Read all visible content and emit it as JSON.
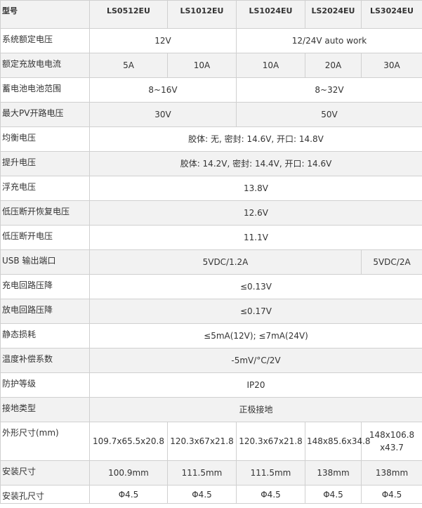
{
  "table": {
    "header": [
      "型号",
      "LS0512EU",
      "LS1012EU",
      "LS1024EU",
      "LS2024EU",
      "LS3024EU"
    ],
    "rows": [
      [
        "系统额定电压",
        "12V",
        "12/24V auto work"
      ],
      [
        "额定充放电电流",
        "5A",
        "10A",
        "10A",
        "20A",
        "30A"
      ],
      [
        "蓄电池电池范围",
        "8~16V",
        "8~32V"
      ],
      [
        "最大PV开路电压",
        "30V",
        "50V"
      ],
      [
        "均衡电压",
        "胶体: 无, 密封: 14.6V, 开口: 14.8V"
      ],
      [
        "提升电压",
        "胶体: 14.2V, 密封: 14.4V, 开口: 14.6V"
      ],
      [
        "浮充电压",
        "13.8V"
      ],
      [
        "低压断开恢复电压",
        "12.6V"
      ],
      [
        "低压断开电压",
        "11.1V"
      ],
      [
        "USB 输出端口",
        "5VDC/1.2A",
        "5VDC/2A"
      ],
      [
        "充电回路压降",
        "≤0.13V"
      ],
      [
        "放电回路压降",
        "≤0.17V"
      ],
      [
        "静态损耗",
        "≤5mA(12V); ≤7mA(24V)"
      ],
      [
        "温度补偿系数",
        "-5mV/°C/2V"
      ],
      [
        "防护等级",
        "IP20"
      ],
      [
        "接地类型",
        "正极接地"
      ],
      [
        "外形尺寸(mm)",
        "109.7x65.5x20.8",
        "120.3x67x21.8",
        "120.3x67x21.8",
        "148x85.6x34.8",
        "148x106.8 x43.7"
      ],
      [
        "安装尺寸",
        "100.9mm",
        "111.5mm",
        "111.5mm",
        "138mm",
        "138mm"
      ],
      [
        "安装孔尺寸",
        "Φ4.5",
        "Φ4.5",
        "Φ4.5",
        "Φ4.5",
        "Φ4.5"
      ]
    ]
  }
}
